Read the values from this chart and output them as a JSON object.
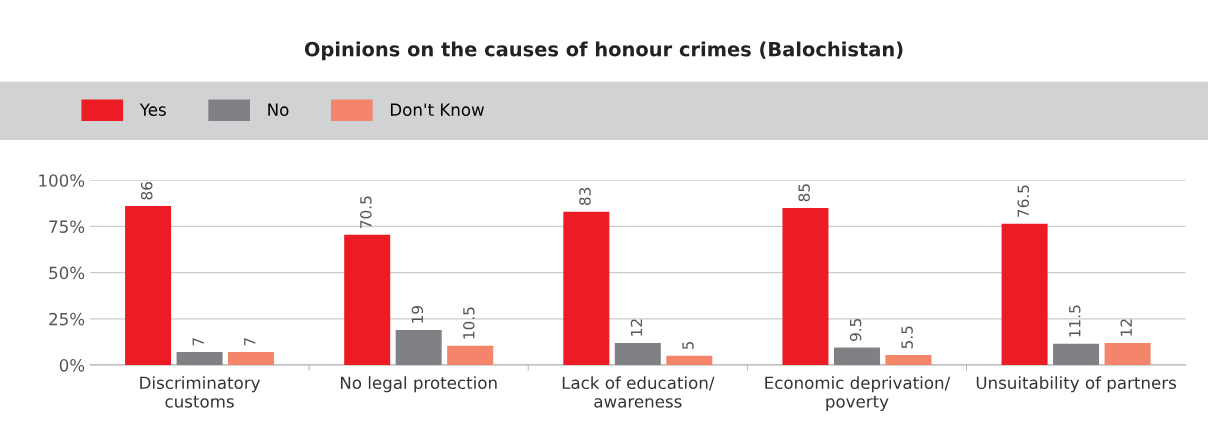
{
  "chart_data": {
    "type": "bar",
    "title": "Opinions on the causes of honour crimes (Balochistan)",
    "categories": [
      "Discriminatory\ncustoms",
      "No legal protection",
      "Lack of education/\nawareness",
      "Economic deprivation/\npoverty",
      "Unsuitability of partners"
    ],
    "series": [
      {
        "name": "Yes",
        "color": "#ed1c24",
        "values": [
          86,
          70.5,
          83,
          85,
          76.5
        ]
      },
      {
        "name": "No",
        "color": "#808184",
        "values": [
          7,
          19,
          12,
          9.5,
          11.5
        ]
      },
      {
        "name": "Don't Know",
        "color": "#f4846a",
        "values": [
          7,
          10.5,
          5,
          5.5,
          12
        ]
      }
    ],
    "ylim": [
      0,
      100
    ],
    "yticks": [
      {
        "value": 0,
        "label": "0%"
      },
      {
        "value": 25,
        "label": "25%"
      },
      {
        "value": 50,
        "label": "50%"
      },
      {
        "value": 75,
        "label": "75%"
      },
      {
        "value": 100,
        "label": "100%"
      }
    ],
    "grid": "y",
    "legend": "top left",
    "data_labels": true
  }
}
